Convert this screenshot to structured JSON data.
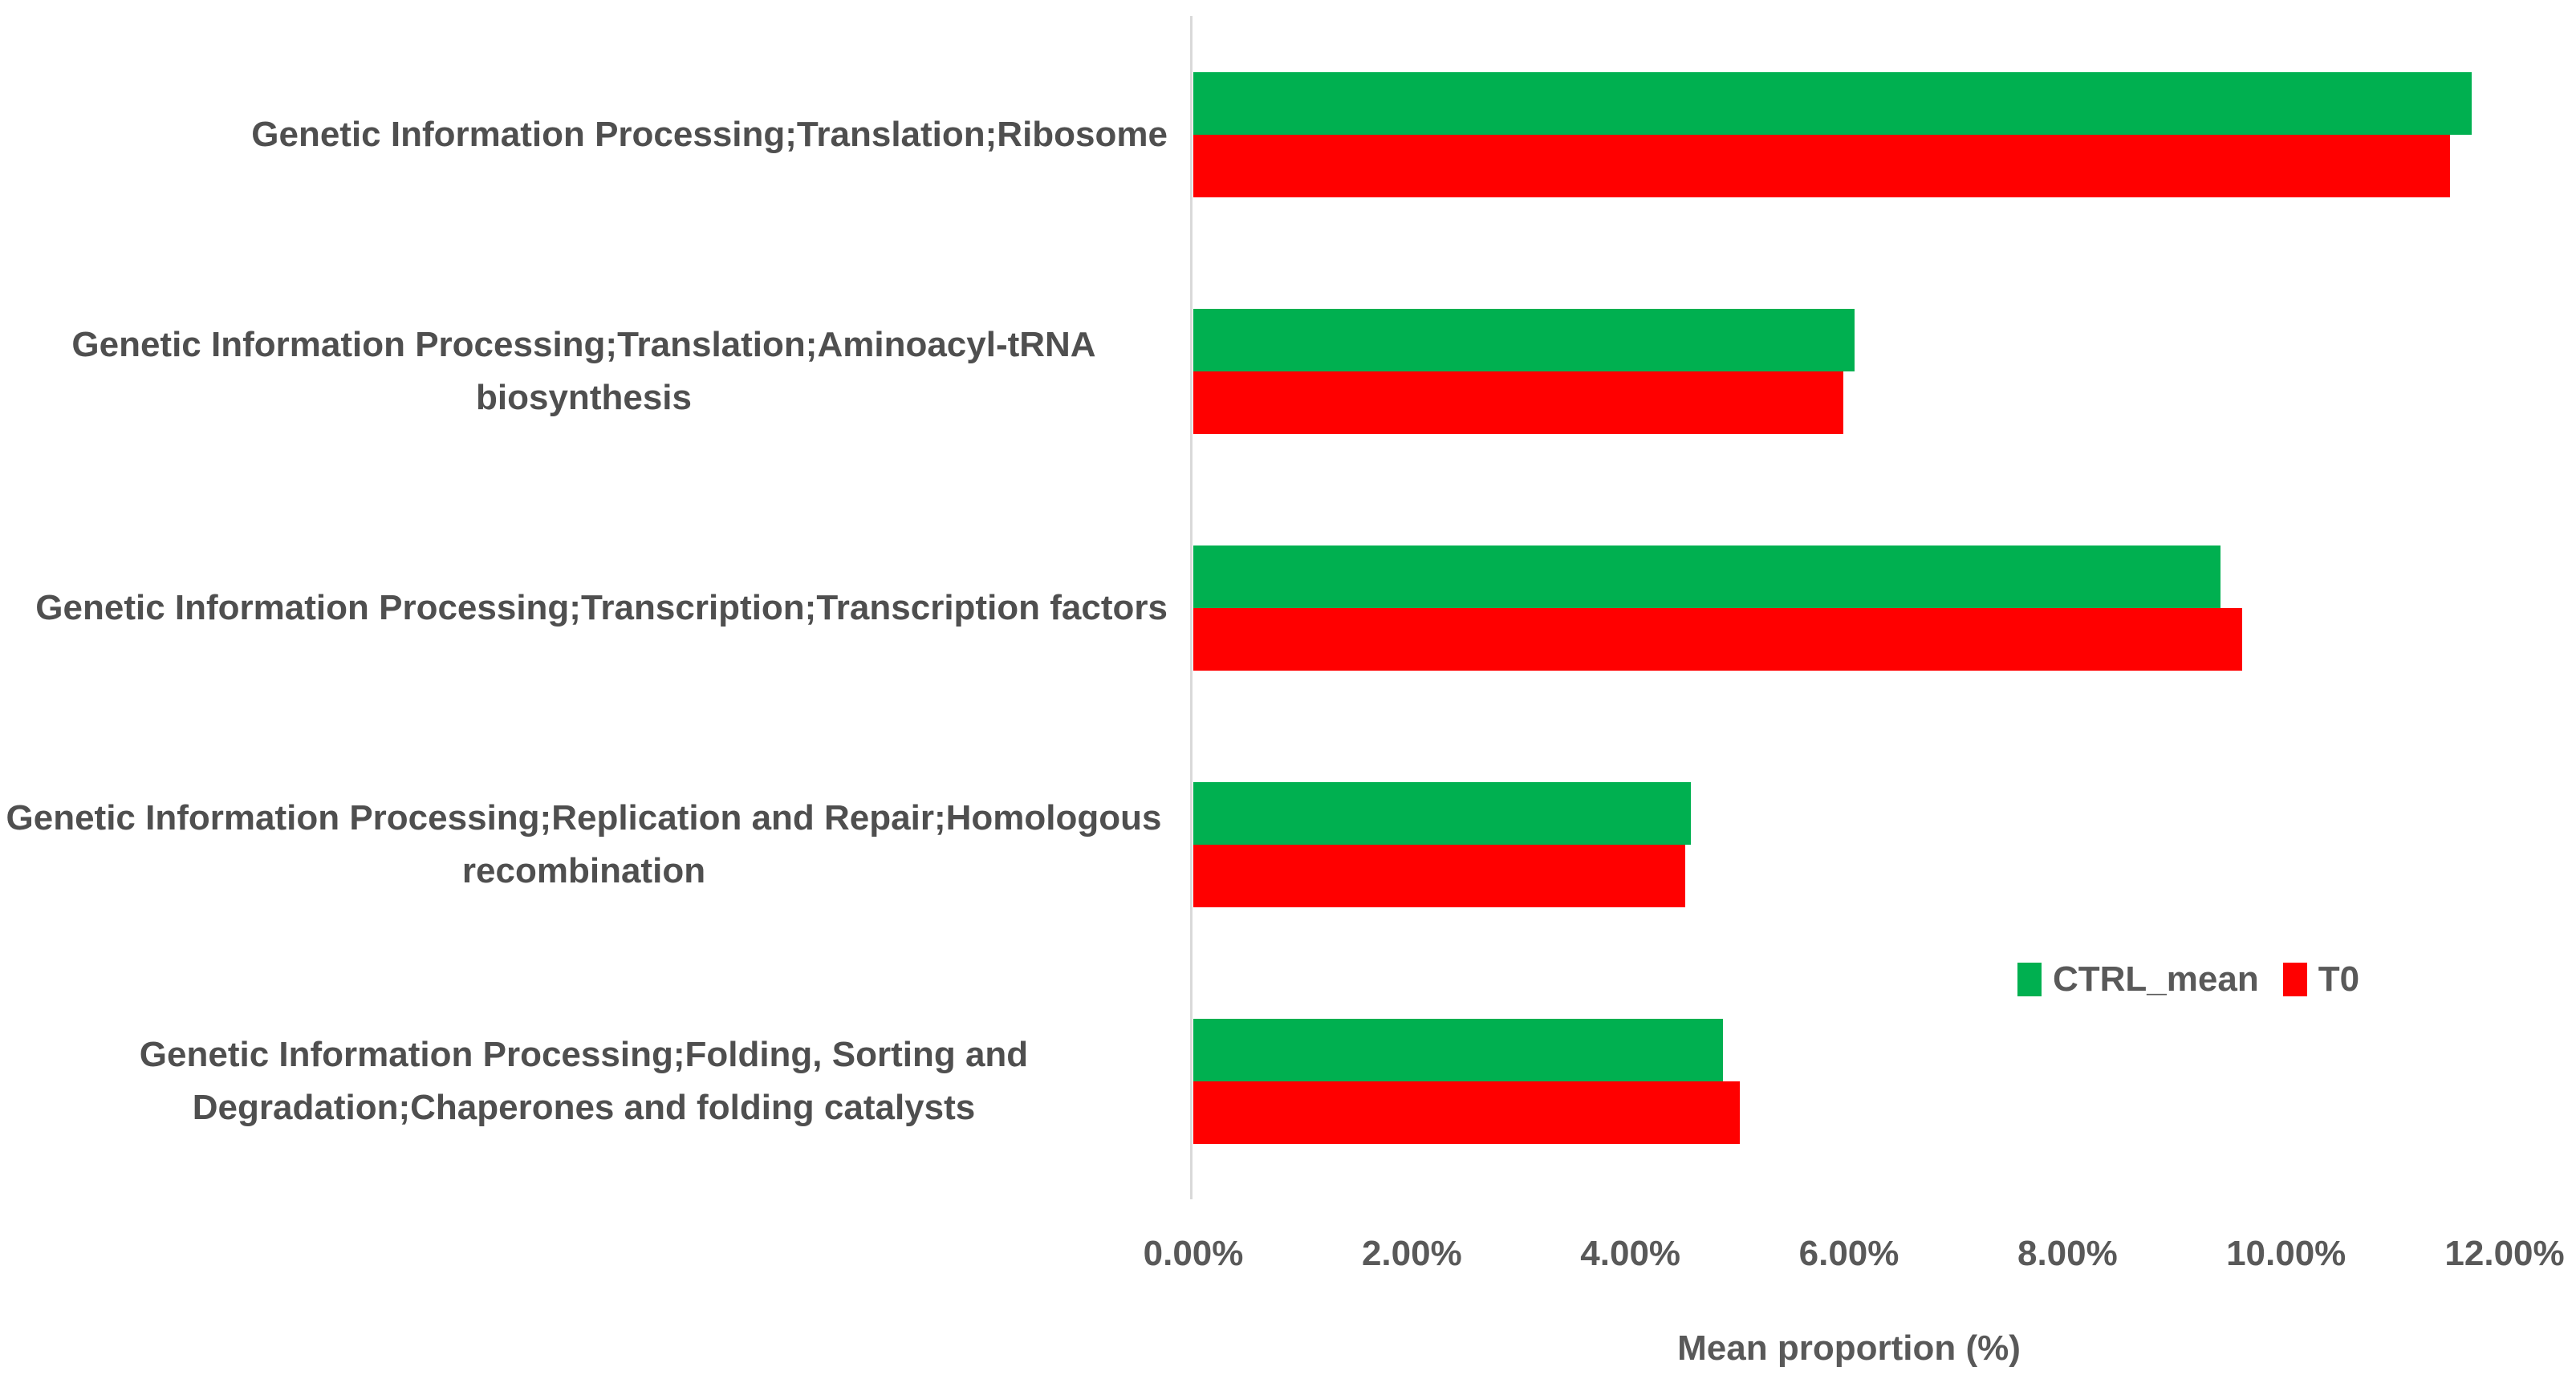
{
  "chart_data": {
    "type": "bar",
    "orientation": "horizontal",
    "title": "",
    "xlabel": "Mean proportion (%)",
    "ylabel": "",
    "categories": [
      "Genetic Information Processing;Translation;Ribosome",
      "Genetic Information Processing;Translation;Aminoacyl-tRNA biosynthesis",
      "Genetic Information Processing;Transcription;Transcription factors",
      "Genetic Information Processing;Replication and Repair;Homologous recombination",
      "Genetic Information Processing;Folding, Sorting and Degradation;Chaperones and folding catalysts"
    ],
    "series": [
      {
        "name": "CTRL_mean",
        "color": "#00B050",
        "values": [
          11.7,
          6.05,
          9.4,
          4.55,
          4.85
        ]
      },
      {
        "name": "T0",
        "color": "#FF0000",
        "values": [
          11.5,
          5.95,
          9.6,
          4.5,
          5.0
        ]
      }
    ],
    "value_unit": "%",
    "xlim": [
      0,
      12
    ],
    "x_tick_step": 2,
    "x_ticks": [
      "0.00%",
      "2.00%",
      "4.00%",
      "6.00%",
      "8.00%",
      "10.00%",
      "12.00%"
    ],
    "grid": false,
    "legend_position": "middle-right",
    "background_color": "#FFFFFF",
    "axis_line_color": "#D9D9D9",
    "text_color": "#595959",
    "category_text_color": "#4F4F4F"
  }
}
